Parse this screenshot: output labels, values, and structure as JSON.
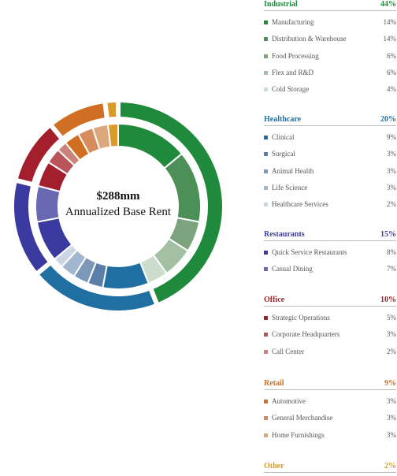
{
  "center": {
    "title": "$288mm",
    "subtitle": "Annualized Base Rent"
  },
  "chart_data": {
    "type": "pie",
    "subtype": "nested-donut",
    "unit": "%",
    "groups": [
      {
        "name": "Industrial",
        "value": 44,
        "value_label": "44%",
        "color": "#1f8a3c",
        "items": [
          {
            "name": "Manufacturing",
            "value": 14,
            "value_label": "14%",
            "color": "#1f8a3c"
          },
          {
            "name": "Distribution & Warehouse",
            "value": 14,
            "value_label": "14%",
            "color": "#4c8f57"
          },
          {
            "name": "Food Processing",
            "value": 6,
            "value_label": "6%",
            "color": "#7ba47e"
          },
          {
            "name": "Flex and R&D",
            "value": 6,
            "value_label": "6%",
            "color": "#a3bfa4"
          },
          {
            "name": "Cold Storage",
            "value": 4,
            "value_label": "4%",
            "color": "#ccdccd"
          }
        ]
      },
      {
        "name": "Healthcare",
        "value": 20,
        "value_label": "20%",
        "color": "#1f6fa3",
        "items": [
          {
            "name": "Clinical",
            "value": 9,
            "value_label": "9%",
            "color": "#1f6fa3"
          },
          {
            "name": "Surgical",
            "value": 3,
            "value_label": "3%",
            "color": "#5b7fa8"
          },
          {
            "name": "Animal Health",
            "value": 3,
            "value_label": "3%",
            "color": "#7d97b8"
          },
          {
            "name": "Life Science",
            "value": 3,
            "value_label": "3%",
            "color": "#a3b6cf"
          },
          {
            "name": "Healthcare Services",
            "value": 2,
            "value_label": "2%",
            "color": "#cbd5e3"
          }
        ]
      },
      {
        "name": "Restaurants",
        "value": 15,
        "value_label": "15%",
        "color": "#3b3aa0",
        "items": [
          {
            "name": "Quick Service Restaurants",
            "value": 8,
            "value_label": "8%",
            "color": "#3b3aa0"
          },
          {
            "name": "Casual Dining",
            "value": 7,
            "value_label": "7%",
            "color": "#6a67b3"
          }
        ]
      },
      {
        "name": "Office",
        "value": 10,
        "value_label": "10%",
        "color": "#a31f2e",
        "items": [
          {
            "name": "Strategic Operations",
            "value": 5,
            "value_label": "5%",
            "color": "#a31f2e"
          },
          {
            "name": "Corporate Headquarters",
            "value": 3,
            "value_label": "3%",
            "color": "#b9545a"
          },
          {
            "name": "Call Center",
            "value": 2,
            "value_label": "2%",
            "color": "#c98379"
          }
        ]
      },
      {
        "name": "Retail",
        "value": 9,
        "value_label": "9%",
        "color": "#d06f23",
        "items": [
          {
            "name": "Automotive",
            "value": 3,
            "value_label": "3%",
            "color": "#d06f23"
          },
          {
            "name": "General Merchandise",
            "value": 3,
            "value_label": "3%",
            "color": "#d58d5d"
          },
          {
            "name": "Home Furnishings",
            "value": 3,
            "value_label": "3%",
            "color": "#dba77b"
          }
        ]
      },
      {
        "name": "Other",
        "value": 2,
        "value_label": "2%",
        "color": "#d99a2a",
        "items": []
      }
    ]
  }
}
